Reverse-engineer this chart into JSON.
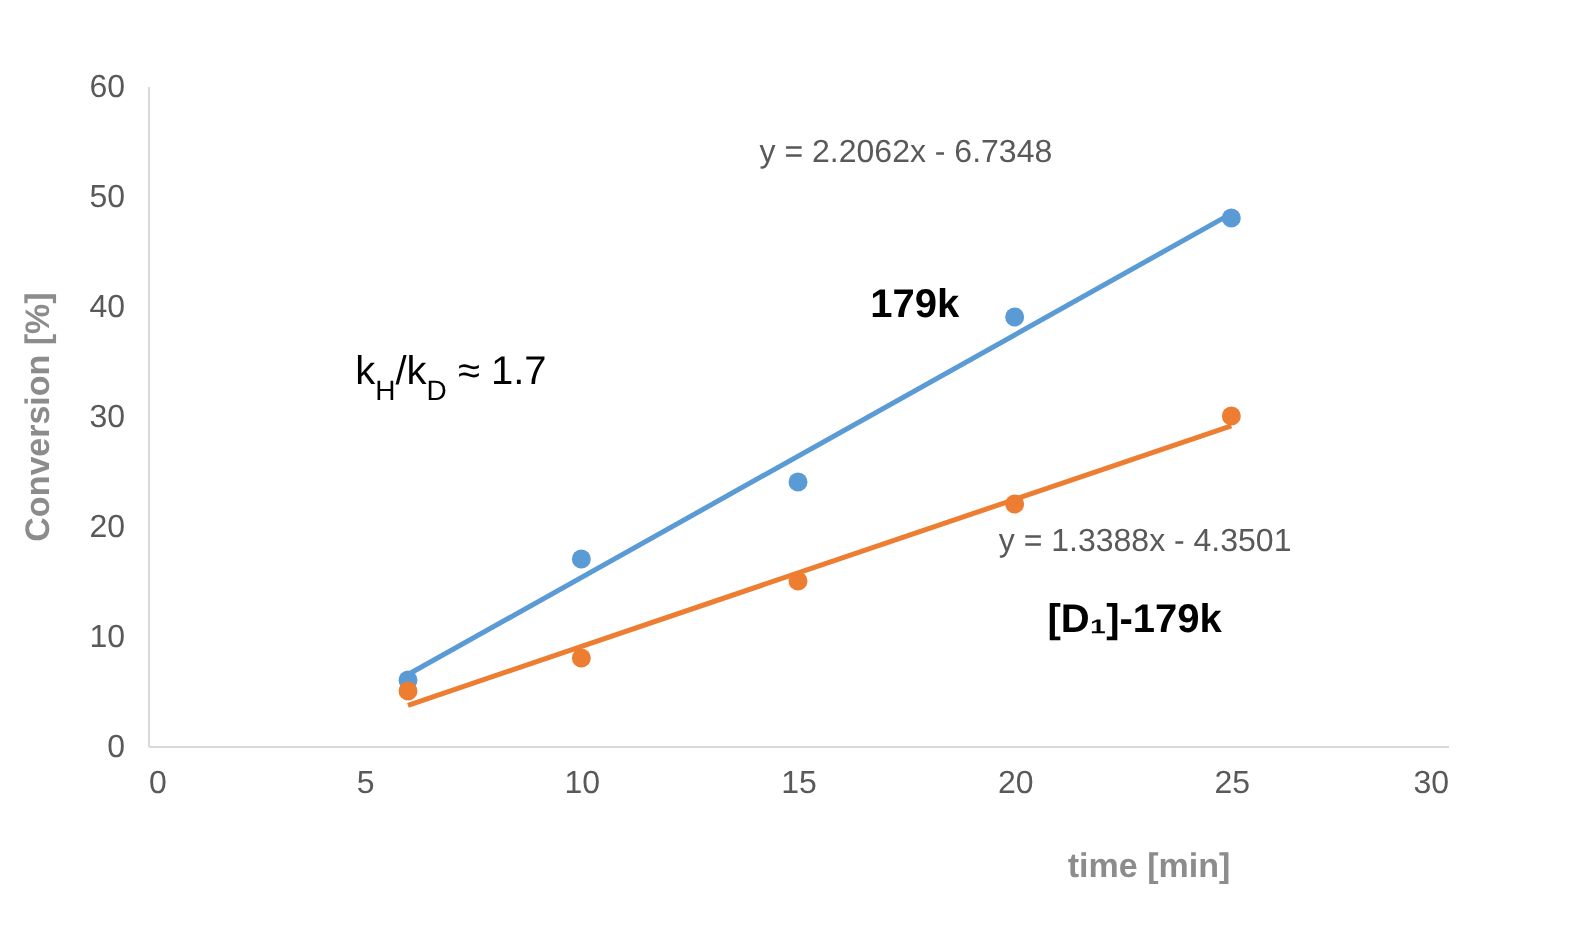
{
  "chart_data": {
    "type": "scatter",
    "xlabel": "time [min]",
    "ylabel": "Conversion [%]",
    "xlim": [
      0,
      30
    ],
    "xticks": [
      0,
      5,
      10,
      15,
      20,
      25,
      30
    ],
    "ylim": [
      0,
      60
    ],
    "yticks": [
      0,
      10,
      20,
      30,
      40,
      50,
      60
    ],
    "marker": "circle",
    "series": [
      {
        "name": "179k",
        "color": "#5b9bd5",
        "x": [
          6,
          10,
          15,
          20,
          25
        ],
        "values": [
          6,
          17,
          24,
          39,
          48
        ]
      },
      {
        "name": "[D₁]-179k",
        "color": "#ed7d31",
        "x": [
          6,
          10,
          15,
          20,
          25
        ],
        "values": [
          5,
          8,
          15,
          22,
          30
        ]
      },
      {
        "type": "line",
        "marker": "none",
        "color": "#5b9bd5",
        "x": [
          6,
          25
        ],
        "values": [
          6.5,
          48.4
        ]
      },
      {
        "type": "line",
        "marker": "none",
        "color": "#ed7d31",
        "x": [
          6,
          25
        ],
        "values": [
          3.7,
          29.1
        ]
      }
    ],
    "annotations": [
      "y = 2.2062x - 6.7348",
      "y = 1.3388x - 4.3501",
      "k$_{H}$/k$_{D}$ ≈ 1.7"
    ]
  }
}
